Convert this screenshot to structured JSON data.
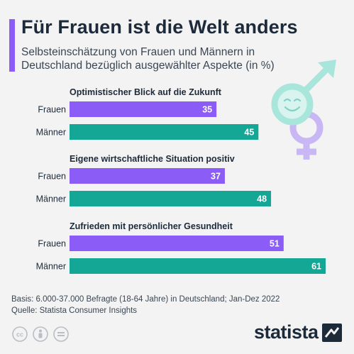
{
  "header": {
    "title": "Für Frauen ist die Welt anders",
    "subtitle_line1": "Selbsteinschätzung von Frauen und Männern in",
    "subtitle_line2": "Deutschland bezüglich ausgewählter Aspekte (in %)"
  },
  "colors": {
    "frauen": "#8b5cf6",
    "maenner": "#14a795",
    "accent": "#8b5cf6"
  },
  "chart_data": {
    "type": "bar",
    "orientation": "horizontal",
    "groups": [
      {
        "label": "Optimistischer Blick auf die Zukunft",
        "bars": [
          {
            "category": "Frauen",
            "value": 35
          },
          {
            "category": "Männer",
            "value": 45
          }
        ]
      },
      {
        "label": "Eigene wirtschaftliche Situation positiv",
        "bars": [
          {
            "category": "Frauen",
            "value": 37
          },
          {
            "category": "Männer",
            "value": 48
          }
        ]
      },
      {
        "label": "Zufrieden mit persönlicher Gesundheit",
        "bars": [
          {
            "category": "Frauen",
            "value": 51
          },
          {
            "category": "Männer",
            "value": 61
          }
        ]
      }
    ],
    "xlim": [
      0,
      61
    ],
    "grid": false,
    "legend": "none"
  },
  "footer": {
    "basis": "Basis: 6.000-37.000 Befragte (18-64 Jahre) in Deutschland; Jan-Dez 2022",
    "source": "Quelle: Statista Consumer Insights",
    "brand": "statista",
    "license_icons": [
      "cc-icon",
      "by-icon",
      "nd-icon"
    ]
  },
  "icons": {
    "illustration": "gender-symbols-icon"
  }
}
